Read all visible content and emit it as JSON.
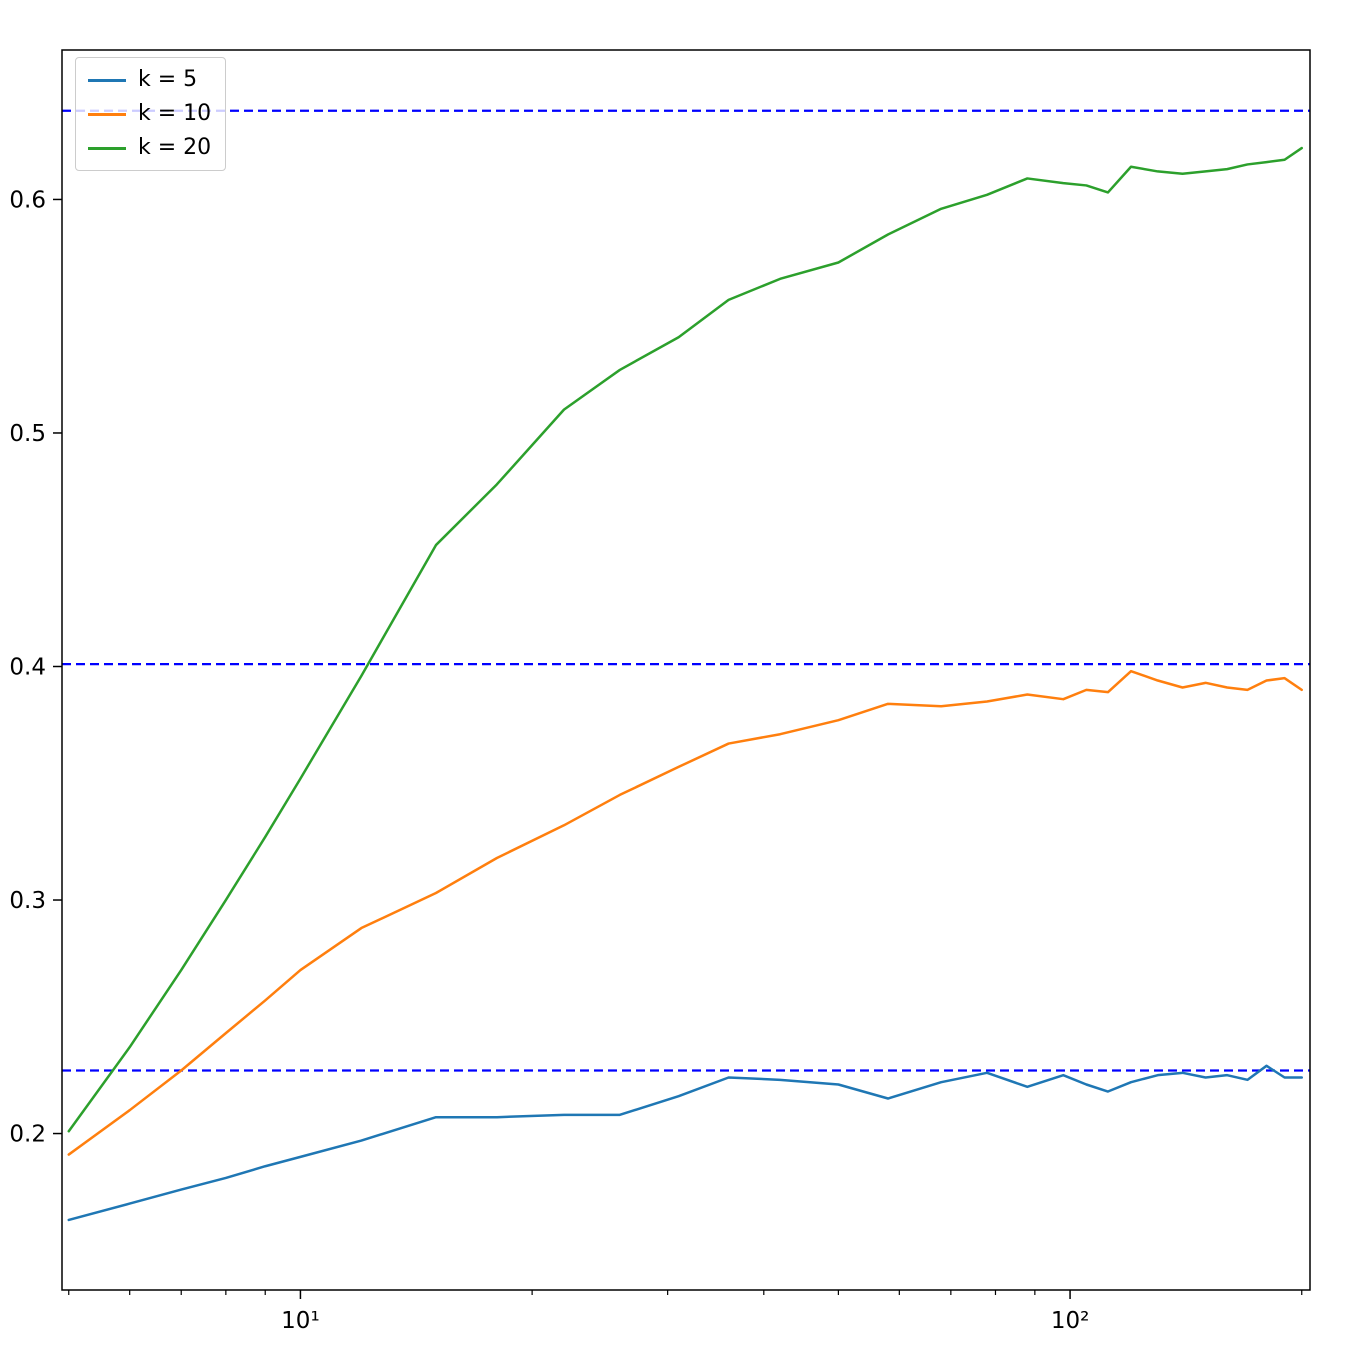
{
  "chart_data": {
    "type": "line",
    "title": "",
    "xlabel": "",
    "ylabel": "",
    "x_scale": "log",
    "grid": false,
    "xlim": [
      4.9,
      205
    ],
    "ylim": [
      0.133,
      0.664
    ],
    "x": [
      5,
      6,
      7,
      8,
      9,
      10,
      12,
      15,
      18,
      22,
      26,
      31,
      36,
      42,
      50,
      58,
      68,
      78,
      88,
      98,
      105,
      112,
      120,
      130,
      140,
      150,
      160,
      170,
      180,
      190,
      200
    ],
    "series": [
      {
        "name": "k = 5",
        "color": "#1f77b4",
        "values": [
          0.163,
          0.17,
          0.176,
          0.181,
          0.186,
          0.19,
          0.197,
          0.207,
          0.207,
          0.208,
          0.208,
          0.216,
          0.224,
          0.223,
          0.221,
          0.215,
          0.222,
          0.226,
          0.22,
          0.225,
          0.221,
          0.218,
          0.222,
          0.225,
          0.226,
          0.224,
          0.225,
          0.223,
          0.229,
          0.224,
          0.224
        ]
      },
      {
        "name": "k = 10",
        "color": "#ff7f0e",
        "values": [
          0.191,
          0.21,
          0.227,
          0.243,
          0.257,
          0.27,
          0.288,
          0.303,
          0.318,
          0.332,
          0.345,
          0.357,
          0.367,
          0.371,
          0.377,
          0.384,
          0.383,
          0.385,
          0.388,
          0.386,
          0.39,
          0.389,
          0.398,
          0.394,
          0.391,
          0.393,
          0.391,
          0.39,
          0.394,
          0.395,
          0.39
        ]
      },
      {
        "name": "k = 20",
        "color": "#2ca02c",
        "values": [
          0.201,
          0.237,
          0.27,
          0.3,
          0.327,
          0.352,
          0.396,
          0.452,
          0.478,
          0.51,
          0.527,
          0.541,
          0.557,
          0.566,
          0.573,
          0.585,
          0.596,
          0.602,
          0.609,
          0.607,
          0.606,
          0.603,
          0.614,
          0.612,
          0.611,
          0.612,
          0.613,
          0.615,
          0.616,
          0.617,
          0.622
        ]
      }
    ],
    "hlines": [
      {
        "y": 0.227,
        "color": "#0000ff",
        "style": "dashed"
      },
      {
        "y": 0.401,
        "color": "#0000ff",
        "style": "dashed"
      },
      {
        "y": 0.638,
        "color": "#0000ff",
        "style": "dashed"
      }
    ],
    "x_ticks": [
      {
        "value": 10,
        "label": "10¹"
      },
      {
        "value": 100,
        "label": "10²"
      }
    ],
    "x_minor_ticks": [
      5,
      6,
      7,
      8,
      9,
      20,
      30,
      40,
      50,
      60,
      70,
      80,
      90,
      200
    ],
    "y_ticks": [
      {
        "value": 0.2,
        "label": "0.2"
      },
      {
        "value": 0.3,
        "label": "0.3"
      },
      {
        "value": 0.4,
        "label": "0.4"
      },
      {
        "value": 0.5,
        "label": "0.5"
      },
      {
        "value": 0.6,
        "label": "0.6"
      }
    ],
    "legend": {
      "position": "upper-left",
      "items": [
        "k = 5",
        "k = 10",
        "k = 20"
      ]
    },
    "frame_color": "#000000"
  }
}
